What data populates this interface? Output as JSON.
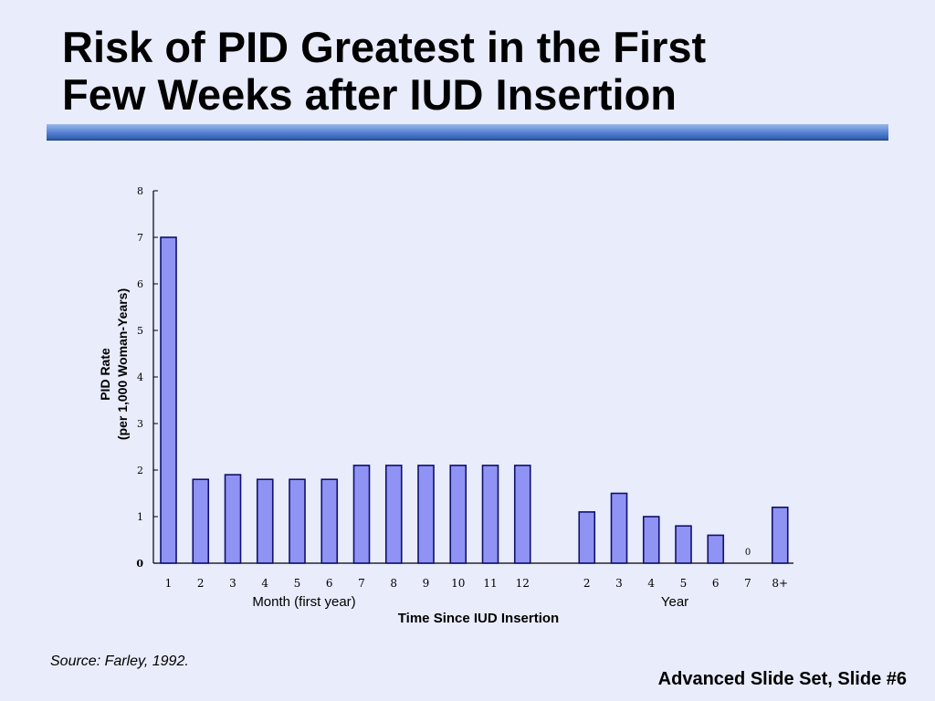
{
  "slide": {
    "title_line1": "Risk of PID Greatest in the First",
    "title_line2": "Few Weeks after IUD Insertion",
    "source": "Source: Farley, 1992.",
    "footer": "Advanced Slide Set, Slide #6"
  },
  "colors": {
    "background": "#e8ecfb",
    "bar_fill": "#8f94f4",
    "bar_stroke": "#10106a",
    "axis": "#000000"
  },
  "chart_data": {
    "type": "bar",
    "title": "",
    "ylabel_line1": "PID Rate",
    "ylabel_line2": "(per 1,000 Woman-Years)",
    "xlabel": "Time Since IUD Insertion",
    "ylim": [
      0,
      8
    ],
    "yticks": [
      0,
      1,
      2,
      3,
      4,
      5,
      6,
      7,
      8
    ],
    "groups": [
      {
        "label": "Month (first year)",
        "categories": [
          "1",
          "2",
          "3",
          "4",
          "5",
          "6",
          "7",
          "8",
          "9",
          "10",
          "11",
          "12"
        ],
        "values": [
          7,
          1.8,
          1.9,
          1.8,
          1.8,
          1.8,
          2.1,
          2.1,
          2.1,
          2.1,
          2.1,
          2.1
        ]
      },
      {
        "label": "Year",
        "categories": [
          "2",
          "3",
          "4",
          "5",
          "6",
          "7",
          "8+"
        ],
        "values": [
          1.1,
          1.5,
          1.0,
          0.8,
          0.6,
          0,
          1.2
        ]
      }
    ],
    "annotations": [
      {
        "text": "0",
        "group": 1,
        "category": "7"
      }
    ]
  }
}
